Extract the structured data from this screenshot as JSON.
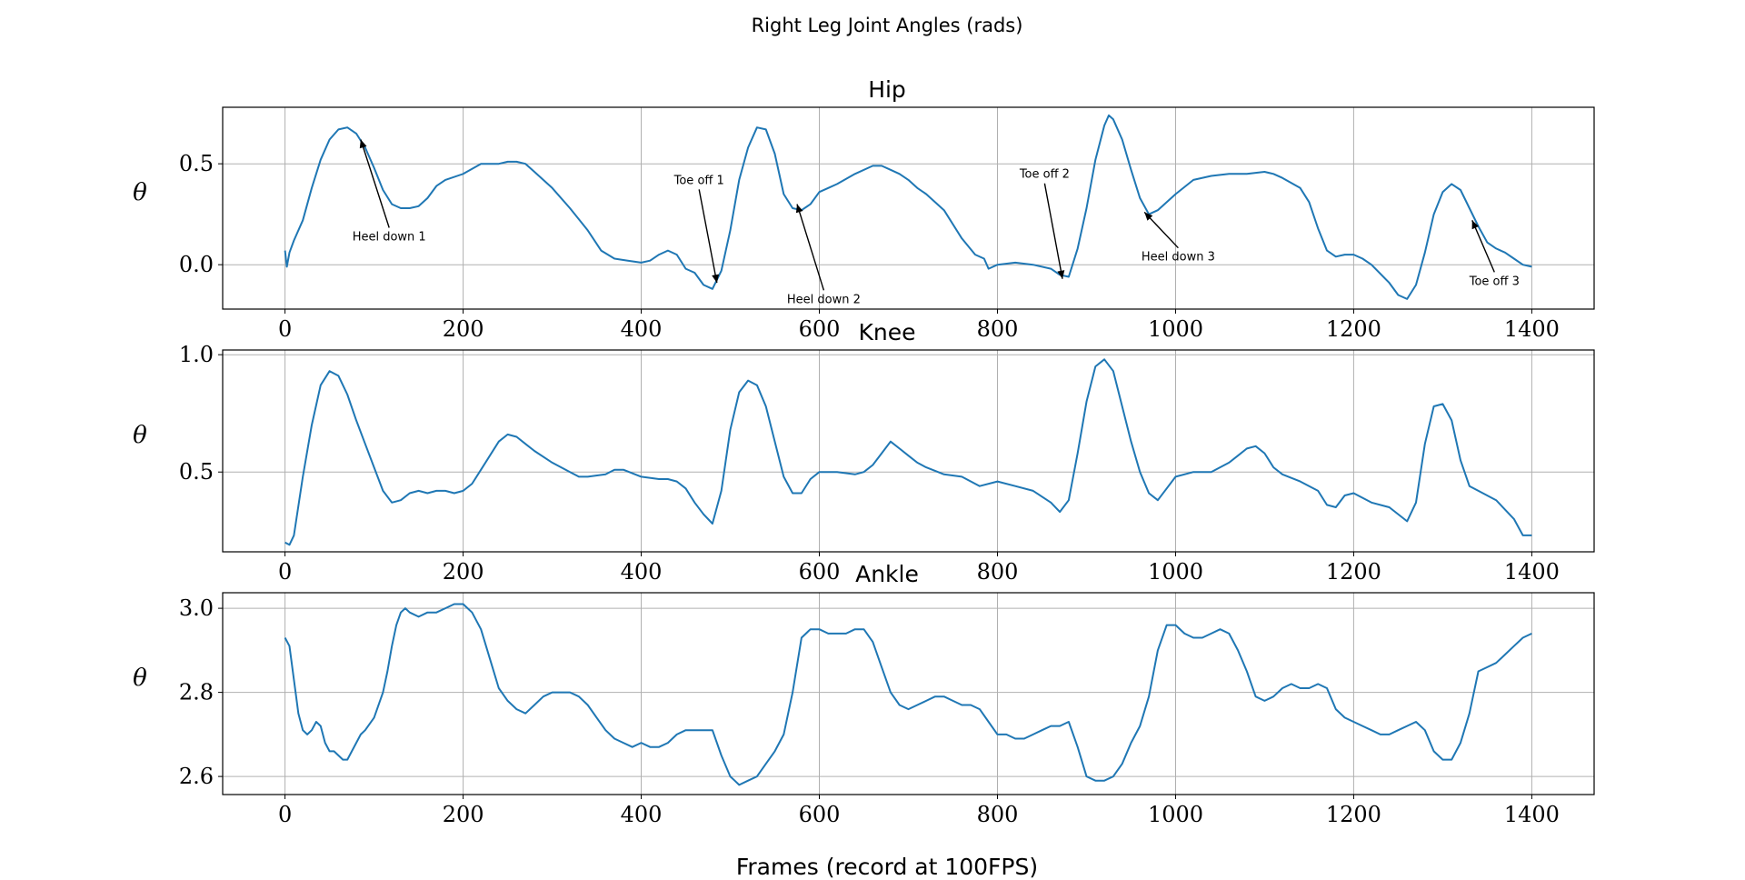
{
  "figure": {
    "suptitle": "Right Leg Joint Angles (rads)",
    "xlabel": "Frames (record at 100FPS)",
    "series_color": "#1f77b4"
  },
  "chart_data": [
    {
      "type": "line",
      "title": "Hip",
      "ylabel": "θ",
      "xlim": [
        -70,
        1470
      ],
      "ylim": [
        -0.22,
        0.78
      ],
      "xticks": [
        0,
        200,
        400,
        600,
        800,
        1000,
        1200,
        1400
      ],
      "yticks": [
        0.0,
        0.5
      ],
      "ytick_labels": [
        "0.0",
        "0.5"
      ],
      "grid": true,
      "x": [
        0,
        2,
        5,
        10,
        20,
        30,
        40,
        50,
        60,
        70,
        80,
        90,
        100,
        110,
        120,
        130,
        140,
        150,
        160,
        170,
        180,
        200,
        220,
        240,
        250,
        260,
        270,
        280,
        300,
        320,
        340,
        355,
        370,
        385,
        400,
        410,
        420,
        430,
        440,
        450,
        460,
        470,
        480,
        490,
        500,
        510,
        520,
        530,
        540,
        550,
        560,
        570,
        580,
        590,
        600,
        610,
        620,
        640,
        660,
        670,
        680,
        690,
        700,
        710,
        720,
        740,
        760,
        775,
        785,
        790,
        800,
        820,
        840,
        860,
        870,
        880,
        890,
        900,
        910,
        920,
        925,
        930,
        940,
        950,
        960,
        970,
        980,
        1000,
        1020,
        1040,
        1060,
        1080,
        1100,
        1110,
        1120,
        1140,
        1150,
        1160,
        1170,
        1180,
        1190,
        1200,
        1210,
        1220,
        1240,
        1250,
        1260,
        1270,
        1280,
        1290,
        1300,
        1310,
        1320,
        1330,
        1340,
        1350,
        1360,
        1370,
        1380,
        1390,
        1400
      ],
      "y": [
        0.07,
        -0.01,
        0.06,
        0.12,
        0.22,
        0.38,
        0.52,
        0.62,
        0.67,
        0.68,
        0.65,
        0.58,
        0.48,
        0.37,
        0.3,
        0.28,
        0.28,
        0.29,
        0.33,
        0.39,
        0.42,
        0.45,
        0.5,
        0.5,
        0.51,
        0.51,
        0.5,
        0.46,
        0.38,
        0.28,
        0.17,
        0.07,
        0.03,
        0.02,
        0.01,
        0.02,
        0.05,
        0.07,
        0.05,
        -0.02,
        -0.04,
        -0.1,
        -0.12,
        -0.03,
        0.17,
        0.42,
        0.58,
        0.68,
        0.67,
        0.55,
        0.35,
        0.28,
        0.27,
        0.3,
        0.36,
        0.38,
        0.4,
        0.45,
        0.49,
        0.49,
        0.47,
        0.45,
        0.42,
        0.38,
        0.35,
        0.27,
        0.13,
        0.05,
        0.03,
        -0.02,
        0.0,
        0.01,
        0.0,
        -0.02,
        -0.05,
        -0.06,
        0.08,
        0.28,
        0.52,
        0.69,
        0.74,
        0.72,
        0.62,
        0.47,
        0.33,
        0.25,
        0.27,
        0.35,
        0.42,
        0.44,
        0.45,
        0.45,
        0.46,
        0.45,
        0.43,
        0.38,
        0.31,
        0.18,
        0.07,
        0.04,
        0.05,
        0.05,
        0.03,
        0.0,
        -0.09,
        -0.15,
        -0.17,
        -0.1,
        0.06,
        0.25,
        0.36,
        0.4,
        0.37,
        0.28,
        0.19,
        0.11,
        0.08,
        0.06,
        0.03,
        0.0,
        -0.01
      ],
      "annotations": [
        {
          "text": "Heel down 1",
          "x": 85,
          "y": 0.62,
          "tx": 117,
          "ty": 0.12
        },
        {
          "text": "Toe off 1",
          "x": 485,
          "y": -0.09,
          "tx": 465,
          "ty": 0.4
        },
        {
          "text": "Heel down 2",
          "x": 575,
          "y": 0.3,
          "tx": 605,
          "ty": -0.19
        },
        {
          "text": "Toe off 2",
          "x": 873,
          "y": -0.07,
          "tx": 853,
          "ty": 0.43
        },
        {
          "text": "Heel down 3",
          "x": 965,
          "y": 0.26,
          "tx": 1003,
          "ty": 0.02
        },
        {
          "text": "Toe off 3",
          "x": 1333,
          "y": 0.22,
          "tx": 1358,
          "ty": -0.1
        }
      ]
    },
    {
      "type": "line",
      "title": "Knee",
      "ylabel": "θ",
      "xlim": [
        -70,
        1470
      ],
      "ylim": [
        0.16,
        1.02
      ],
      "xticks": [
        0,
        200,
        400,
        600,
        800,
        1000,
        1200,
        1400
      ],
      "yticks": [
        0.5,
        1.0
      ],
      "ytick_labels": [
        "0.5",
        "1.0"
      ],
      "grid": true,
      "x": [
        0,
        5,
        10,
        20,
        30,
        40,
        50,
        60,
        70,
        80,
        90,
        100,
        110,
        120,
        130,
        140,
        150,
        160,
        170,
        180,
        190,
        200,
        210,
        220,
        230,
        240,
        250,
        260,
        270,
        280,
        300,
        320,
        330,
        340,
        360,
        370,
        380,
        400,
        420,
        430,
        440,
        450,
        460,
        470,
        480,
        490,
        500,
        510,
        520,
        530,
        540,
        550,
        560,
        570,
        580,
        590,
        600,
        610,
        620,
        640,
        650,
        660,
        670,
        680,
        690,
        700,
        710,
        720,
        740,
        760,
        780,
        800,
        820,
        840,
        860,
        870,
        880,
        890,
        900,
        910,
        920,
        930,
        940,
        950,
        960,
        970,
        980,
        990,
        1000,
        1020,
        1040,
        1060,
        1070,
        1080,
        1090,
        1100,
        1110,
        1120,
        1140,
        1160,
        1170,
        1180,
        1190,
        1200,
        1210,
        1220,
        1240,
        1260,
        1270,
        1280,
        1290,
        1300,
        1310,
        1320,
        1330,
        1340,
        1360,
        1380,
        1390,
        1400
      ],
      "y": [
        0.2,
        0.19,
        0.23,
        0.48,
        0.7,
        0.87,
        0.93,
        0.91,
        0.83,
        0.72,
        0.62,
        0.52,
        0.42,
        0.37,
        0.38,
        0.41,
        0.42,
        0.41,
        0.42,
        0.42,
        0.41,
        0.42,
        0.45,
        0.51,
        0.57,
        0.63,
        0.66,
        0.65,
        0.62,
        0.59,
        0.54,
        0.5,
        0.48,
        0.48,
        0.49,
        0.51,
        0.51,
        0.48,
        0.47,
        0.47,
        0.46,
        0.43,
        0.37,
        0.32,
        0.28,
        0.42,
        0.68,
        0.84,
        0.89,
        0.87,
        0.78,
        0.63,
        0.48,
        0.41,
        0.41,
        0.47,
        0.5,
        0.5,
        0.5,
        0.49,
        0.5,
        0.53,
        0.58,
        0.63,
        0.6,
        0.57,
        0.54,
        0.52,
        0.49,
        0.48,
        0.44,
        0.46,
        0.44,
        0.42,
        0.37,
        0.33,
        0.38,
        0.58,
        0.8,
        0.95,
        0.98,
        0.93,
        0.78,
        0.63,
        0.5,
        0.41,
        0.38,
        0.43,
        0.48,
        0.5,
        0.5,
        0.54,
        0.57,
        0.6,
        0.61,
        0.58,
        0.52,
        0.49,
        0.46,
        0.42,
        0.36,
        0.35,
        0.4,
        0.41,
        0.39,
        0.37,
        0.35,
        0.29,
        0.37,
        0.62,
        0.78,
        0.79,
        0.72,
        0.55,
        0.44,
        0.42,
        0.38,
        0.3,
        0.23,
        0.23
      ],
      "annotations": []
    },
    {
      "type": "line",
      "title": "Ankle",
      "ylabel": "θ",
      "xlim": [
        -70,
        1470
      ],
      "ylim": [
        2.557,
        3.037
      ],
      "xticks": [
        0,
        200,
        400,
        600,
        800,
        1000,
        1200,
        1400
      ],
      "yticks": [
        2.6,
        2.8,
        3.0
      ],
      "ytick_labels": [
        "2.6",
        "2.8",
        "3.0"
      ],
      "grid": true,
      "x": [
        0,
        5,
        10,
        15,
        20,
        25,
        30,
        35,
        40,
        45,
        50,
        55,
        60,
        65,
        70,
        75,
        80,
        85,
        90,
        100,
        110,
        115,
        120,
        125,
        130,
        135,
        140,
        150,
        160,
        170,
        180,
        190,
        200,
        210,
        220,
        230,
        240,
        250,
        260,
        270,
        280,
        290,
        300,
        310,
        320,
        330,
        340,
        350,
        360,
        370,
        380,
        390,
        400,
        410,
        420,
        430,
        440,
        450,
        460,
        470,
        480,
        490,
        500,
        505,
        510,
        520,
        530,
        540,
        550,
        560,
        570,
        580,
        590,
        600,
        610,
        620,
        630,
        640,
        650,
        660,
        670,
        680,
        690,
        700,
        710,
        720,
        730,
        740,
        750,
        760,
        770,
        780,
        790,
        800,
        810,
        820,
        830,
        840,
        850,
        860,
        870,
        880,
        890,
        900,
        910,
        920,
        930,
        940,
        950,
        960,
        970,
        980,
        990,
        1000,
        1010,
        1020,
        1030,
        1040,
        1050,
        1060,
        1070,
        1080,
        1090,
        1100,
        1110,
        1120,
        1130,
        1140,
        1150,
        1160,
        1170,
        1180,
        1190,
        1200,
        1210,
        1220,
        1230,
        1240,
        1250,
        1260,
        1270,
        1280,
        1290,
        1300,
        1310,
        1320,
        1330,
        1340,
        1350,
        1360,
        1370,
        1380,
        1390,
        1400
      ],
      "y": [
        2.93,
        2.91,
        2.83,
        2.75,
        2.71,
        2.7,
        2.71,
        2.73,
        2.72,
        2.68,
        2.66,
        2.66,
        2.65,
        2.64,
        2.64,
        2.66,
        2.68,
        2.7,
        2.71,
        2.74,
        2.8,
        2.85,
        2.91,
        2.96,
        2.99,
        3.0,
        2.99,
        2.98,
        2.99,
        2.99,
        3.0,
        3.01,
        3.01,
        2.99,
        2.95,
        2.88,
        2.81,
        2.78,
        2.76,
        2.75,
        2.77,
        2.79,
        2.8,
        2.8,
        2.8,
        2.79,
        2.77,
        2.74,
        2.71,
        2.69,
        2.68,
        2.67,
        2.68,
        2.67,
        2.67,
        2.68,
        2.7,
        2.71,
        2.71,
        2.71,
        2.71,
        2.65,
        2.6,
        2.59,
        2.58,
        2.59,
        2.6,
        2.63,
        2.66,
        2.7,
        2.8,
        2.93,
        2.95,
        2.95,
        2.94,
        2.94,
        2.94,
        2.95,
        2.95,
        2.92,
        2.86,
        2.8,
        2.77,
        2.76,
        2.77,
        2.78,
        2.79,
        2.79,
        2.78,
        2.77,
        2.77,
        2.76,
        2.73,
        2.7,
        2.7,
        2.69,
        2.69,
        2.7,
        2.71,
        2.72,
        2.72,
        2.73,
        2.67,
        2.6,
        2.59,
        2.59,
        2.6,
        2.63,
        2.68,
        2.72,
        2.79,
        2.9,
        2.96,
        2.96,
        2.94,
        2.93,
        2.93,
        2.94,
        2.95,
        2.94,
        2.9,
        2.85,
        2.79,
        2.78,
        2.79,
        2.81,
        2.82,
        2.81,
        2.81,
        2.82,
        2.81,
        2.76,
        2.74,
        2.73,
        2.72,
        2.71,
        2.7,
        2.7,
        2.71,
        2.72,
        2.73,
        2.71,
        2.66,
        2.64,
        2.64,
        2.68,
        2.75,
        2.85,
        2.86,
        2.87,
        2.89,
        2.91,
        2.93,
        2.94
      ],
      "annotations": []
    }
  ]
}
